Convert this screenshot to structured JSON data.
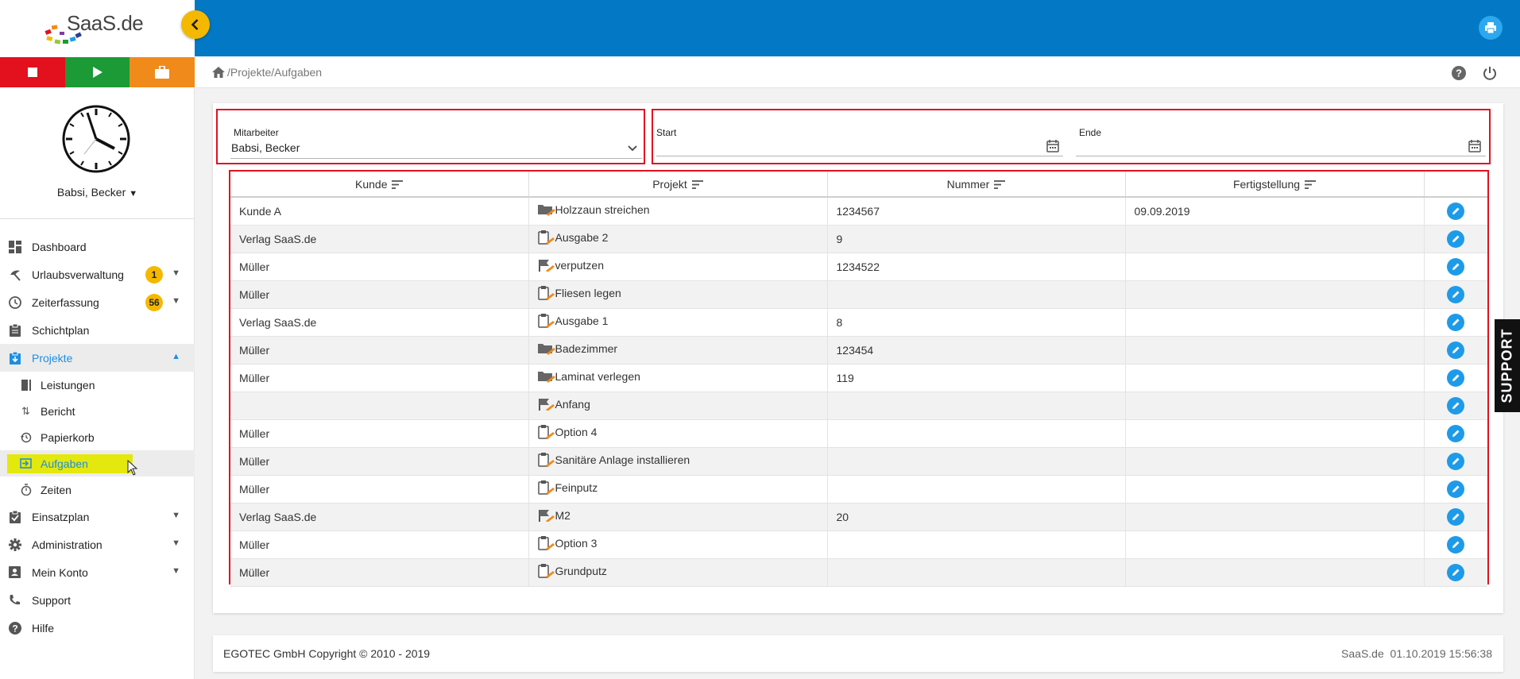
{
  "logo": {
    "text": "SaaS.de"
  },
  "user": {
    "name": "Babsi, Becker"
  },
  "nav": {
    "dashboard": "Dashboard",
    "urlaub": {
      "label": "Urlaubsverwaltung",
      "badge": "1"
    },
    "zeit": {
      "label": "Zeiterfassung",
      "badge": "56"
    },
    "schicht": "Schichtplan",
    "projekte": "Projekte",
    "leistungen": "Leistungen",
    "bericht": "Bericht",
    "papierkorb": "Papierkorb",
    "aufgaben": "Aufgaben",
    "zeiten": "Zeiten",
    "einsatz": "Einsatzplan",
    "admin": "Administration",
    "konto": "Mein Konto",
    "support": "Support",
    "hilfe": "Hilfe"
  },
  "breadcrumb": {
    "path": "/Projekte/Aufgaben"
  },
  "filters": {
    "mitarbeiter_label": "Mitarbeiter",
    "mitarbeiter_value": "Babsi, Becker",
    "start_label": "Start",
    "ende_label": "Ende"
  },
  "table": {
    "headers": [
      "Kunde",
      "Projekt",
      "Nummer",
      "Fertigstellung"
    ],
    "rows": [
      {
        "kunde": "Kunde A",
        "icon": "folder",
        "projekt": "Holzzaun streichen",
        "nummer": "1234567",
        "fertig": "09.09.2019"
      },
      {
        "kunde": "Verlag SaaS.de",
        "icon": "clipboard",
        "projekt": "Ausgabe 2",
        "nummer": "9",
        "fertig": ""
      },
      {
        "kunde": "Müller",
        "icon": "flag",
        "projekt": "verputzen",
        "nummer": "1234522",
        "fertig": ""
      },
      {
        "kunde": "Müller",
        "icon": "clipboard",
        "projekt": "Fliesen legen",
        "nummer": "",
        "fertig": ""
      },
      {
        "kunde": "Verlag SaaS.de",
        "icon": "clipboard",
        "projekt": "Ausgabe 1",
        "nummer": "8",
        "fertig": ""
      },
      {
        "kunde": "Müller",
        "icon": "folder",
        "projekt": "Badezimmer",
        "nummer": "123454",
        "fertig": ""
      },
      {
        "kunde": "Müller",
        "icon": "folder",
        "projekt": "Laminat verlegen",
        "nummer": "119",
        "fertig": ""
      },
      {
        "kunde": "",
        "icon": "flag",
        "projekt": "Anfang",
        "nummer": "",
        "fertig": ""
      },
      {
        "kunde": "Müller",
        "icon": "clipboard",
        "projekt": "Option 4",
        "nummer": "",
        "fertig": ""
      },
      {
        "kunde": "Müller",
        "icon": "clipboard",
        "projekt": "Sanitäre Anlage installieren",
        "nummer": "",
        "fertig": ""
      },
      {
        "kunde": "Müller",
        "icon": "clipboard",
        "projekt": "Feinputz",
        "nummer": "",
        "fertig": ""
      },
      {
        "kunde": "Verlag SaaS.de",
        "icon": "flag",
        "projekt": "M2",
        "nummer": "20",
        "fertig": ""
      },
      {
        "kunde": "Müller",
        "icon": "clipboard",
        "projekt": "Option 3",
        "nummer": "",
        "fertig": ""
      },
      {
        "kunde": "Müller",
        "icon": "clipboard",
        "projekt": "Grundputz",
        "nummer": "",
        "fertig": ""
      }
    ]
  },
  "support_tab": "SUPPORT",
  "footer": {
    "copyright": "EGOTEC GmbH Copyright © 2010 - 2019",
    "right": "SaaS.de  01.10.2019 15:56:38"
  },
  "colors": {
    "topbar": "#0378c4",
    "accent": "#1e8ee0",
    "badge": "#f5b800",
    "highlight": "#e4e80d",
    "annotation_red": "#e3101e"
  }
}
